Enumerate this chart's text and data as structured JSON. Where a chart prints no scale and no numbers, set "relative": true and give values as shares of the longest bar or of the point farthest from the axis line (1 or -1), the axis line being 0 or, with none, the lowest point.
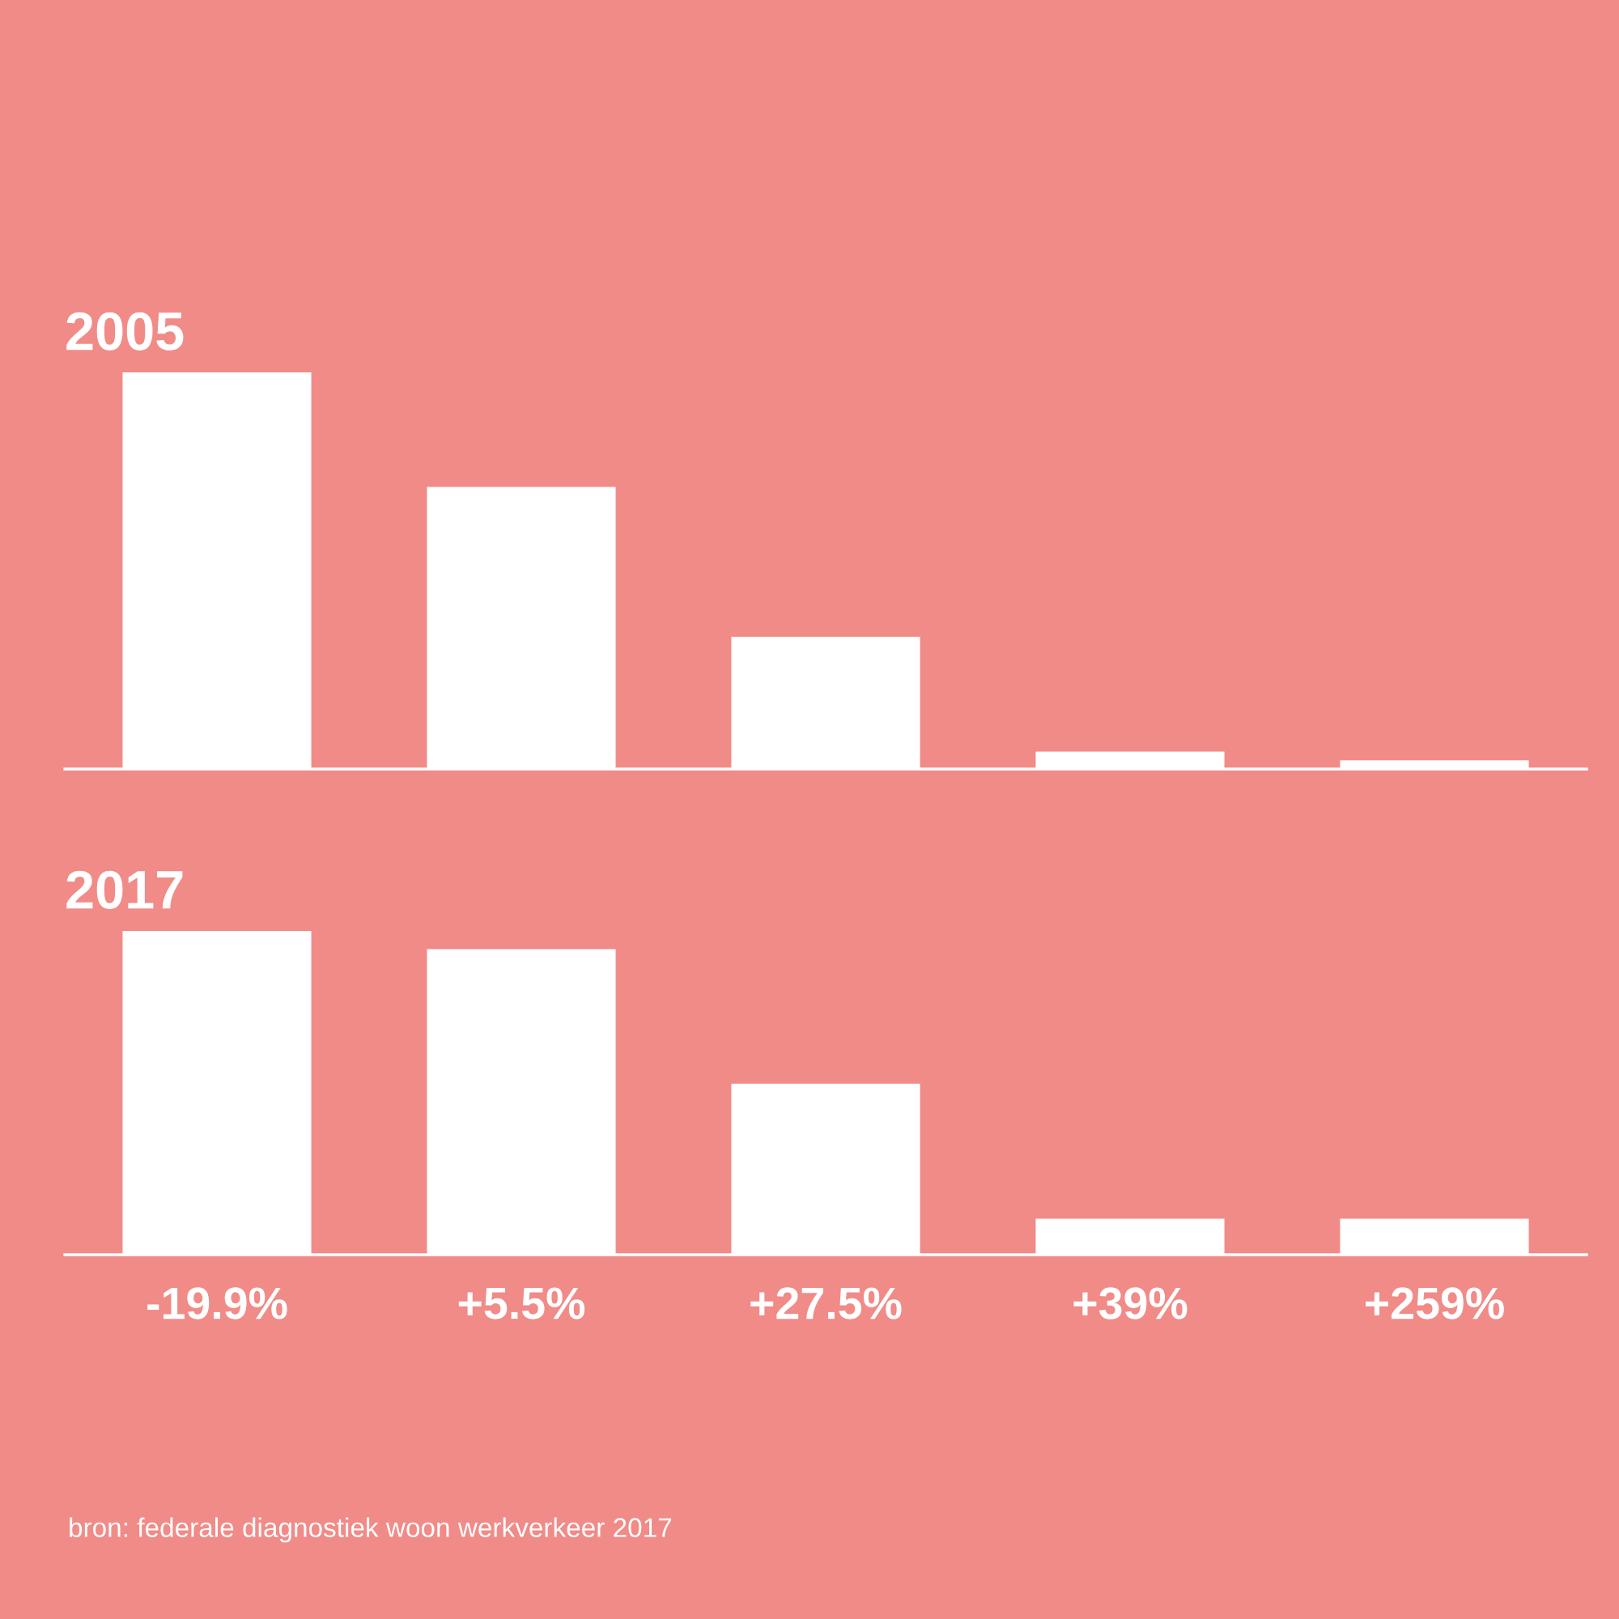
{
  "chart_data": [
    {
      "type": "bar",
      "title": "2005",
      "categories": [
        null,
        null,
        null,
        null,
        null
      ],
      "values": [
        1,
        0.711,
        0.333,
        0.044,
        0.022
      ],
      "relative": true,
      "color": "#ffffff"
    },
    {
      "type": "bar",
      "title": "2017",
      "categories": [
        null,
        null,
        null,
        null,
        null
      ],
      "values": [
        1,
        0.944,
        0.528,
        0.111,
        0.111
      ],
      "relative": true,
      "color": "#ffffff",
      "annotations": [
        "-19.9%",
        "+5.5%",
        "+27.5%",
        "+39%",
        "+259%",
        "bron: federale diagnostiek woon werkverkeer 2017"
      ]
    }
  ]
}
